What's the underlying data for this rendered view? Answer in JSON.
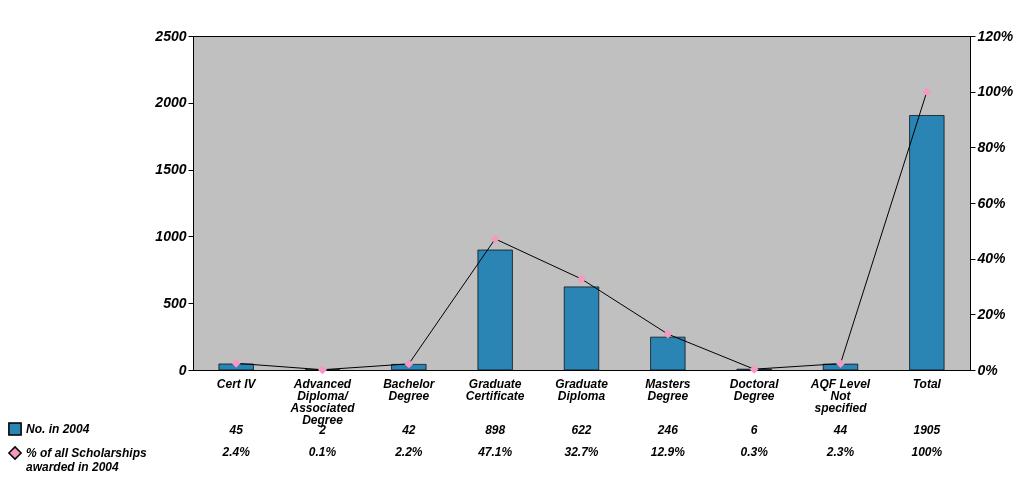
{
  "chart_data": {
    "type": "bar",
    "categories": [
      "Cert IV",
      "Advanced Diploma/ Associated Degree",
      "Bachelor Degree",
      "Graduate Certificate",
      "Graduate Diploma",
      "Masters Degree",
      "Doctoral Degree",
      "AQF Level Not specified",
      "Total"
    ],
    "series": [
      {
        "name": "No. in 2004",
        "color": "#2a84b4",
        "values": [
          45,
          2,
          42,
          898,
          622,
          246,
          6,
          44,
          1905
        ]
      },
      {
        "name": "% of all Scholarships awarded in 2004",
        "type": "line",
        "axis": "y2",
        "color": "#000000",
        "values": [
          2.4,
          0.1,
          2.2,
          47.1,
          32.7,
          12.9,
          0.3,
          2.3,
          100
        ],
        "value_labels": [
          "2.4%",
          "0.1%",
          "2.2%",
          "47.1%",
          "32.7%",
          "12.9%",
          "0.3%",
          "2.3%",
          "100%"
        ]
      }
    ],
    "ylim": [
      0,
      2500
    ],
    "yticks": [
      0,
      500,
      1000,
      1500,
      2000,
      2500
    ],
    "y2lim": [
      0,
      120
    ],
    "y2ticks": [
      {
        "value": 0,
        "label": "0%"
      },
      {
        "value": 20,
        "label": "20%"
      },
      {
        "value": 40,
        "label": "40%"
      },
      {
        "value": 60,
        "label": "60%"
      },
      {
        "value": 80,
        "label": "80%"
      },
      {
        "value": 100,
        "label": "100%"
      },
      {
        "value": 120,
        "label": "120%"
      }
    ],
    "data_labels": true,
    "grid": false,
    "legend": "bottom left",
    "marker": "diamond",
    "line_style": "solid"
  }
}
